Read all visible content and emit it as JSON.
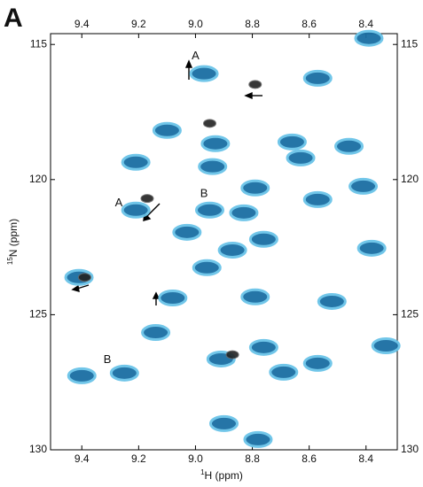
{
  "chart_data": {
    "type": "scatter",
    "panel_label": "A",
    "xlabel": {
      "sup": "1",
      "text": "H (ppm)"
    },
    "ylabel": {
      "sup": "15",
      "text": "N (ppm)"
    },
    "xlim": [
      9.51,
      8.29
    ],
    "ylim": [
      114.6,
      130
    ],
    "xticks": [
      9.4,
      9.2,
      {
        "value": 9,
        "label": "9.0"
      },
      8.8,
      8.6,
      8.4
    ],
    "yticks": [
      115,
      120,
      125,
      130
    ],
    "series": [
      {
        "color": "#1a6ea3",
        "x": [
          8.39,
          8.97,
          8.57,
          9.1,
          8.93,
          9.21,
          8.94,
          8.66,
          8.46,
          8.79,
          8.95,
          9.21,
          8.83,
          9.03,
          8.76,
          8.87,
          8.96,
          8.41,
          8.38,
          9.41,
          9.08,
          8.79,
          8.52,
          9.14,
          8.91,
          8.33,
          8.76,
          9.25,
          9.4,
          8.69,
          8.57,
          8.9,
          8.78,
          8.57,
          8.63
        ],
        "y": [
          114.77,
          116.08,
          116.25,
          118.18,
          118.67,
          119.36,
          119.52,
          118.61,
          118.77,
          120.31,
          121.13,
          121.13,
          121.23,
          121.95,
          122.21,
          122.61,
          123.26,
          120.25,
          122.54,
          123.62,
          124.38,
          124.34,
          124.51,
          125.66,
          126.64,
          126.15,
          126.21,
          127.16,
          127.26,
          127.13,
          126.8,
          129.03,
          129.62,
          120.74,
          119.2
        ]
      },
      {
        "color": "#222222",
        "x": [
          8.79,
          8.95,
          9.17,
          9.39,
          8.87
        ],
        "y": [
          116.48,
          117.92,
          120.7,
          123.62,
          126.48
        ]
      }
    ],
    "annotations": [
      {
        "text": "A",
        "x": 9.0,
        "y": 115.43
      },
      {
        "text": "A",
        "x": 9.27,
        "y": 120.87
      },
      {
        "text": "B",
        "x": 8.97,
        "y": 120.54
      },
      {
        "text": "B",
        "x": 9.31,
        "y": 126.67
      }
    ]
  }
}
